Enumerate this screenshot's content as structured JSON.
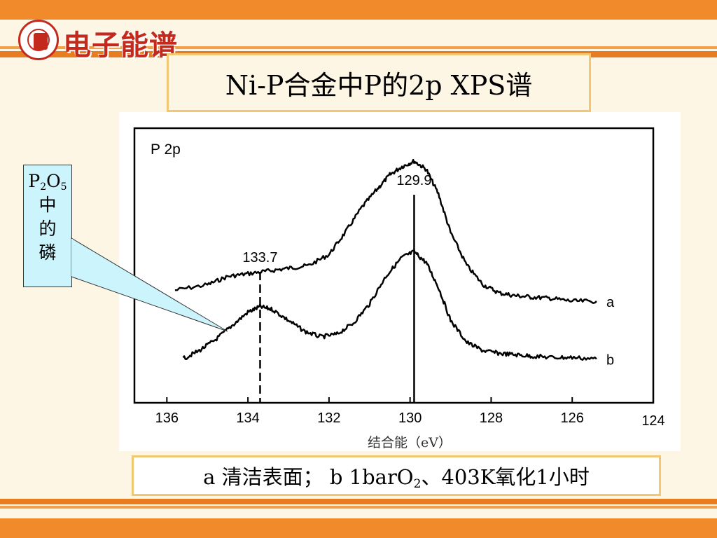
{
  "header": {
    "logo_text": "电子能谱"
  },
  "title": "Ni-P合金中P的2p XPS谱",
  "callout": {
    "formula_p": "P",
    "formula_sub1": "2",
    "formula_o": "O",
    "formula_sub2": "5",
    "lines": [
      "中",
      "的",
      "磷"
    ]
  },
  "caption": {
    "part1": "a 清洁表面； b 1barO",
    "sub": "2",
    "part2": "、403K氧化1小时"
  },
  "chart_data": {
    "type": "line",
    "title": "P 2p",
    "xlabel": "结合能（eV）",
    "ylabel": "",
    "x_reversed": true,
    "xlim": [
      136.8,
      124
    ],
    "ylim": [
      0,
      10
    ],
    "x_ticks": [
      136,
      134,
      132,
      130,
      128,
      126,
      124
    ],
    "x_tick_labels": [
      "136",
      "134",
      "132",
      "130",
      "128",
      "126",
      "124"
    ],
    "reference_lines": [
      {
        "x": 129.9,
        "label": "129.9",
        "style": "solid"
      },
      {
        "x": 133.7,
        "label": "133.7",
        "style": "dashed"
      }
    ],
    "series": [
      {
        "name": "a",
        "x": [
          135.8,
          135.0,
          134.5,
          134.0,
          133.5,
          133.0,
          132.5,
          132.0,
          131.6,
          131.2,
          130.8,
          130.5,
          130.2,
          129.9,
          129.6,
          129.3,
          129.0,
          128.6,
          128.2,
          127.8,
          127.4,
          127.0,
          126.5,
          126.0,
          125.4
        ],
        "y": [
          4.1,
          4.3,
          4.6,
          4.7,
          4.8,
          4.9,
          5.0,
          5.4,
          6.2,
          7.1,
          7.8,
          8.3,
          8.6,
          8.8,
          8.5,
          7.6,
          6.2,
          5.0,
          4.3,
          4.0,
          3.9,
          3.85,
          3.8,
          3.7,
          3.7
        ]
      },
      {
        "name": "b",
        "x": [
          135.6,
          135.2,
          134.8,
          134.4,
          134.0,
          133.7,
          133.4,
          133.0,
          132.6,
          132.2,
          131.8,
          131.4,
          131.0,
          130.6,
          130.2,
          129.9,
          129.6,
          129.3,
          129.0,
          128.6,
          128.2,
          127.8,
          127.4,
          127.0,
          126.5,
          126.0,
          125.4
        ],
        "y": [
          1.6,
          1.9,
          2.3,
          2.8,
          3.3,
          3.5,
          3.4,
          3.0,
          2.6,
          2.4,
          2.5,
          2.9,
          3.6,
          4.6,
          5.3,
          5.5,
          5.1,
          4.2,
          3.0,
          2.2,
          1.9,
          1.8,
          1.75,
          1.7,
          1.65,
          1.65,
          1.6
        ]
      }
    ]
  }
}
